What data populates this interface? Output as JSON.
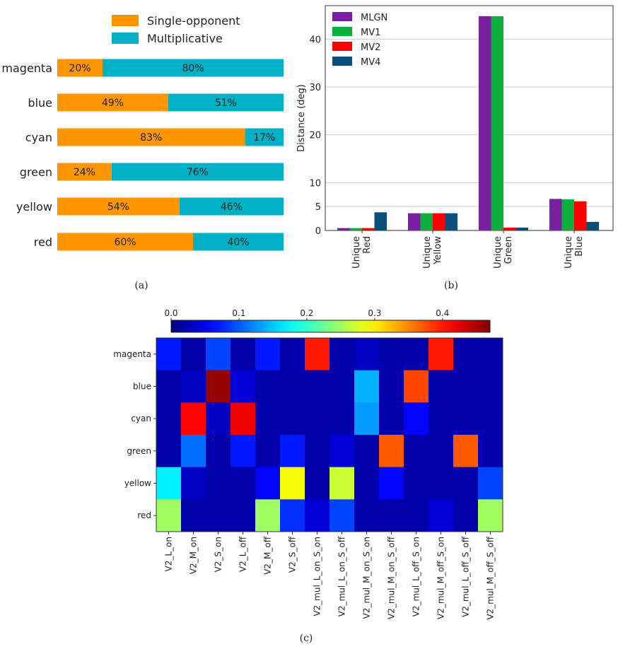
{
  "captions": {
    "a": "(a)",
    "b": "(b)",
    "c": "(c)"
  },
  "chart_data": [
    {
      "type": "bar",
      "orientation": "horizontal",
      "stacked": true,
      "categories": [
        "magenta",
        "blue",
        "cyan",
        "green",
        "yellow",
        "red"
      ],
      "series": [
        {
          "name": "Single-opponent",
          "color": "#ff9600",
          "values": [
            20,
            49,
            83,
            24,
            54,
            60
          ],
          "labels": [
            "20%",
            "49%",
            "83%",
            "24%",
            "54%",
            "60%"
          ]
        },
        {
          "name": "Multiplicative",
          "color": "#00b0c4",
          "values": [
            80,
            51,
            17,
            76,
            46,
            40
          ],
          "labels": [
            "80%",
            "51%",
            "17%",
            "76%",
            "46%",
            "40%"
          ]
        }
      ],
      "xlim": [
        0,
        100
      ],
      "legend": "top"
    },
    {
      "type": "bar",
      "categories": [
        "Unique\nRed",
        "Unique\nYellow",
        "Unique\nGreen",
        "Unique\nBlue"
      ],
      "series": [
        {
          "name": "MLGN",
          "color": "#7a1fa2",
          "values": [
            0.5,
            3.6,
            44.8,
            6.6
          ]
        },
        {
          "name": "MV1",
          "color": "#0aaf3c",
          "values": [
            0.5,
            3.6,
            44.8,
            6.5
          ]
        },
        {
          "name": "MV2",
          "color": "#ff0000",
          "values": [
            0.5,
            3.6,
            0.6,
            6.1
          ]
        },
        {
          "name": "MV4",
          "color": "#0a4f7c",
          "values": [
            3.8,
            3.6,
            0.6,
            1.8
          ]
        }
      ],
      "ylabel": "Distance (deg)",
      "ylim": [
        0,
        47
      ],
      "yticks": [
        0,
        5,
        10,
        20,
        30,
        40
      ],
      "grid": true,
      "legend": "top-left"
    },
    {
      "type": "heatmap",
      "rows": [
        "magenta",
        "blue",
        "cyan",
        "green",
        "yellow",
        "red"
      ],
      "columns": [
        "V2_L_on",
        "V2_M_on",
        "V2_S_on",
        "V2_L_off",
        "V2_M_off",
        "V2_S_off",
        "V2_mul_L_on_S_on",
        "V2_mul_L_on_S_off",
        "V2_mul_M_on_S_on",
        "V2_mul_M_on_S_off",
        "V2_mul_L_off_S_on",
        "V2_mul_M_off_S_on",
        "V2_mul_L_off_S_off",
        "V2_mul_M_off_S_off"
      ],
      "values": [
        [
          0.07,
          0.02,
          0.09,
          0.02,
          0.07,
          0.02,
          0.4,
          0.02,
          0.03,
          0.02,
          0.02,
          0.4,
          0.02,
          0.02
        ],
        [
          0.02,
          0.03,
          0.46,
          0.04,
          0.02,
          0.02,
          0.02,
          0.02,
          0.14,
          0.02,
          0.38,
          0.02,
          0.02,
          0.02
        ],
        [
          0.02,
          0.41,
          0.03,
          0.42,
          0.02,
          0.02,
          0.02,
          0.02,
          0.13,
          0.02,
          0.06,
          0.02,
          0.02,
          0.02
        ],
        [
          0.02,
          0.11,
          0.02,
          0.07,
          0.02,
          0.07,
          0.02,
          0.04,
          0.02,
          0.37,
          0.02,
          0.02,
          0.37,
          0.02
        ],
        [
          0.17,
          0.03,
          0.02,
          0.02,
          0.06,
          0.29,
          0.02,
          0.27,
          0.02,
          0.06,
          0.02,
          0.02,
          0.02,
          0.09
        ],
        [
          0.25,
          0.02,
          0.02,
          0.02,
          0.25,
          0.08,
          0.04,
          0.09,
          0.02,
          0.02,
          0.02,
          0.04,
          0.02,
          0.25
        ]
      ],
      "colormap": "jet",
      "vmin": 0.0,
      "vmax": 0.47,
      "colorbar_ticks": [
        "0.0",
        "0.1",
        "0.2",
        "0.3",
        "0.4"
      ],
      "colorbar_tick_values": [
        0,
        0.1,
        0.2,
        0.3,
        0.4
      ],
      "colorbar_placement": "top"
    }
  ]
}
